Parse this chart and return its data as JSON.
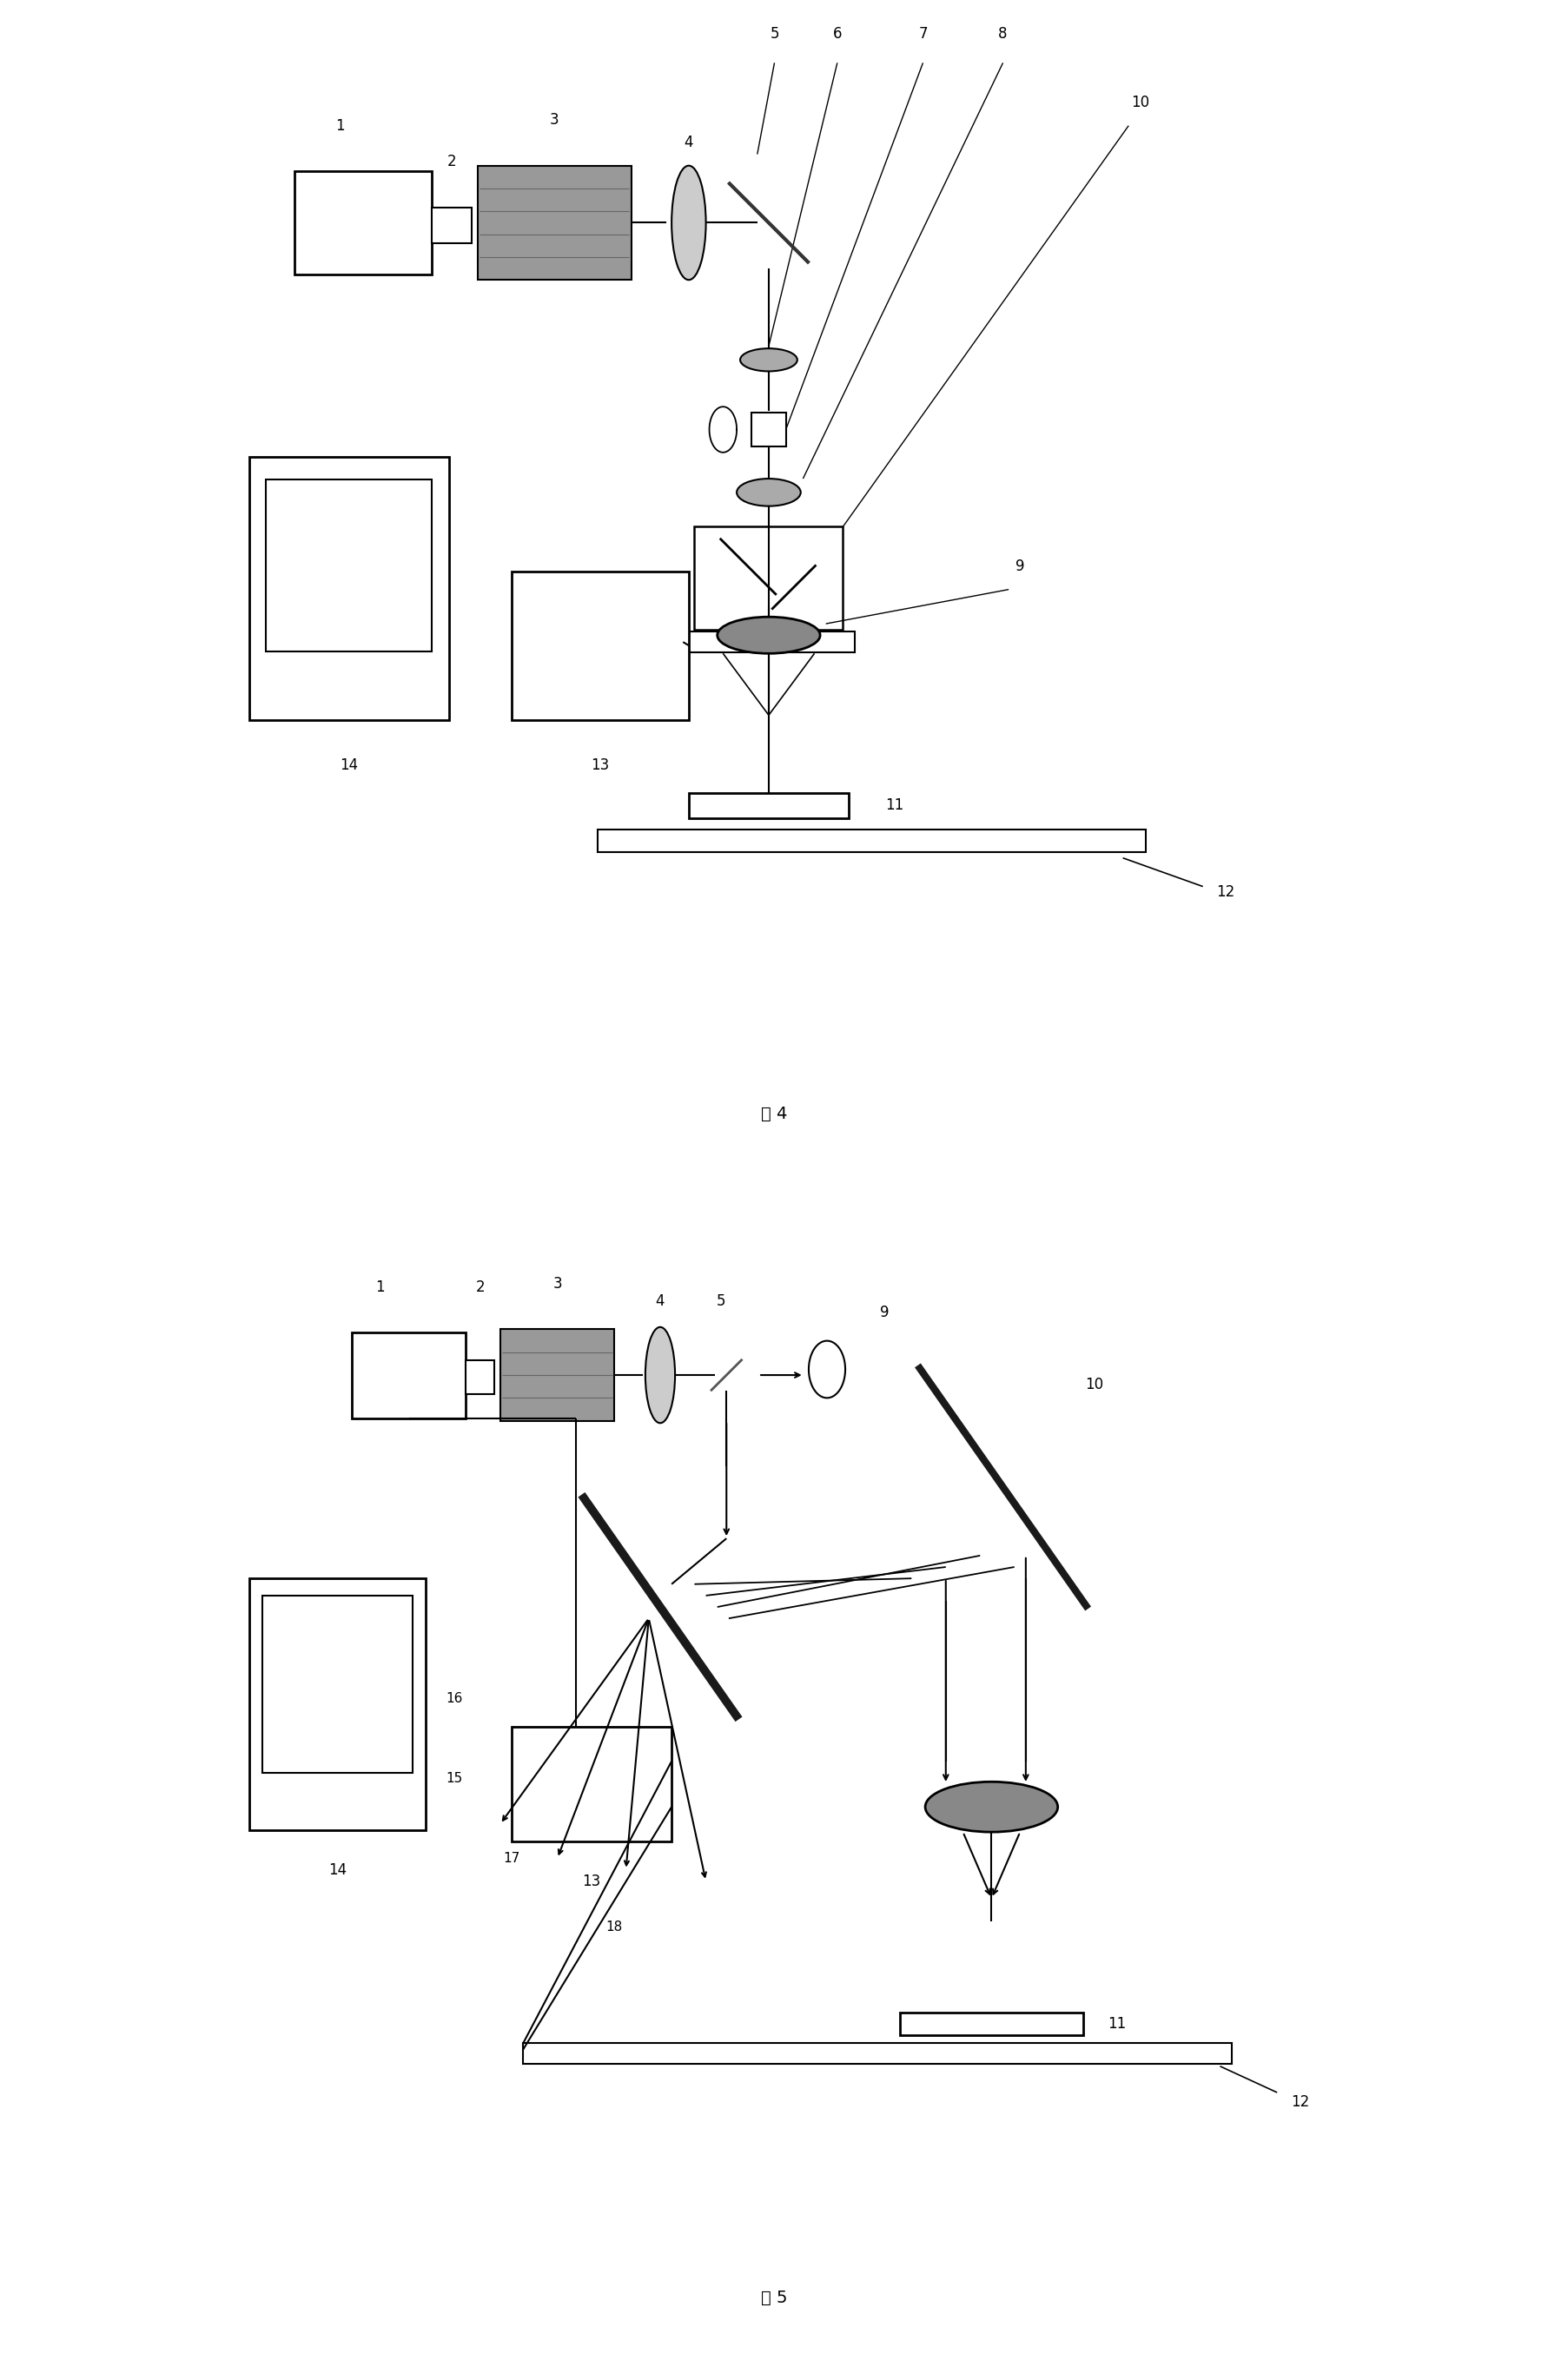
{
  "fig_width": 17.83,
  "fig_height": 27.4,
  "bg_color": "#ffffff",
  "fig4_caption": "图 4",
  "fig5_caption": "图 5"
}
